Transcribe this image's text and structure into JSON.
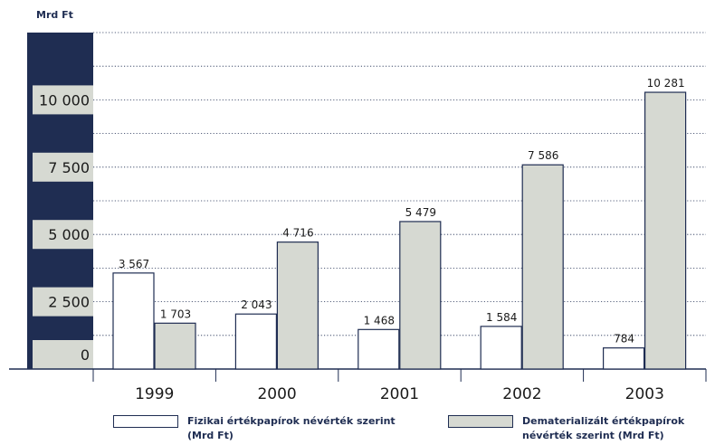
{
  "chart_data": {
    "type": "bar",
    "title": "",
    "unit_label": "Mrd Ft",
    "categories": [
      "1999",
      "2000",
      "2001",
      "2002",
      "2003"
    ],
    "series": [
      {
        "name": "Fizikai értékpapírok névérték szerint\n(Mrd Ft)",
        "values": [
          3567,
          2043,
          1468,
          1584,
          784
        ],
        "value_labels": [
          "3 567",
          "2 043",
          "1 468",
          "1 584",
          "784"
        ],
        "color": "#ffffff"
      },
      {
        "name": "Dematerializált értékpapírok\nnévérték szerint (Mrd Ft)",
        "values": [
          1703,
          4716,
          5479,
          7586,
          10281
        ],
        "value_labels": [
          "1 703",
          "4 716",
          "5 479",
          "7 586",
          "10 281"
        ],
        "color": "#d6d9d2"
      }
    ],
    "y_ticks": [
      0,
      2500,
      5000,
      7500,
      10000
    ],
    "y_tick_labels": [
      "0",
      "2 500",
      "5 000",
      "7 500",
      "10 000"
    ],
    "ylim": [
      0,
      12500
    ],
    "grid": true,
    "legend_position": "bottom",
    "colors": {
      "axis_band": "#1f2d52",
      "tick_band": "#d6d9d2",
      "grid": "#1f2d52",
      "bar_edge": "#1f2d52"
    }
  }
}
